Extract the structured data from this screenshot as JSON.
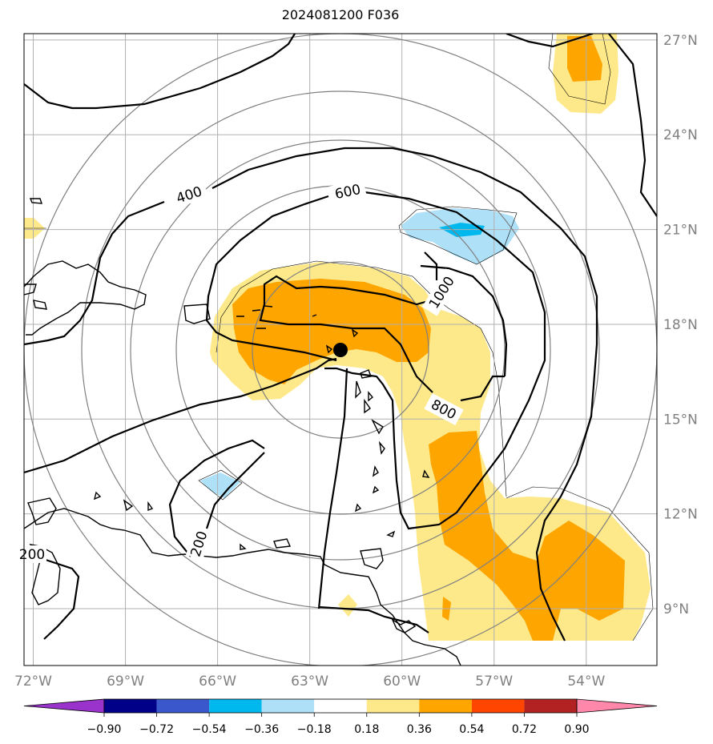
{
  "title": "2024081200 F036",
  "map": {
    "lon_range": [
      -72.3,
      -51.7
    ],
    "lat_range": [
      7.2,
      27.2
    ],
    "lon_ticks": [
      -72,
      -69,
      -66,
      -63,
      -60,
      -57,
      -54
    ],
    "lon_tick_labels": [
      "72°W",
      "69°W",
      "66°W",
      "63°W",
      "60°W",
      "57°W",
      "54°W"
    ],
    "lat_ticks": [
      9,
      12,
      15,
      18,
      21,
      24,
      27
    ],
    "lat_tick_labels": [
      "9°N",
      "12°N",
      "15°N",
      "18°N",
      "21°N",
      "24°N",
      "27°N"
    ],
    "center_marker": {
      "lon": -62.3,
      "lat": 17.2,
      "name": "storm-center-marker"
    },
    "range_rings_km": [
      200,
      400,
      600,
      800,
      1000
    ],
    "contour_labels": [
      "400",
      "600",
      "800",
      "1000",
      "200",
      "200"
    ],
    "colors": {
      "shade_light_yellow": "#fde98a",
      "shade_orange": "#ffa500",
      "shade_light_blue": "#aee0f8",
      "shade_blue": "#00b8ee",
      "grid": "#b0b0b0",
      "rings": "#808080"
    }
  },
  "colorbar": {
    "levels": [
      "−0.90",
      "−0.72",
      "−0.54",
      "−0.36",
      "−0.18",
      "0.18",
      "0.36",
      "0.54",
      "0.72",
      "0.90"
    ],
    "colors": [
      "#9933cc",
      "#000088",
      "#3a58cc",
      "#00b8ee",
      "#aee0f8",
      "#ffffff",
      "#fde98a",
      "#ffa500",
      "#ff4500",
      "#b22222",
      "#ff88aa"
    ],
    "under_color": "#9933cc",
    "over_color": "#ff88aa"
  }
}
